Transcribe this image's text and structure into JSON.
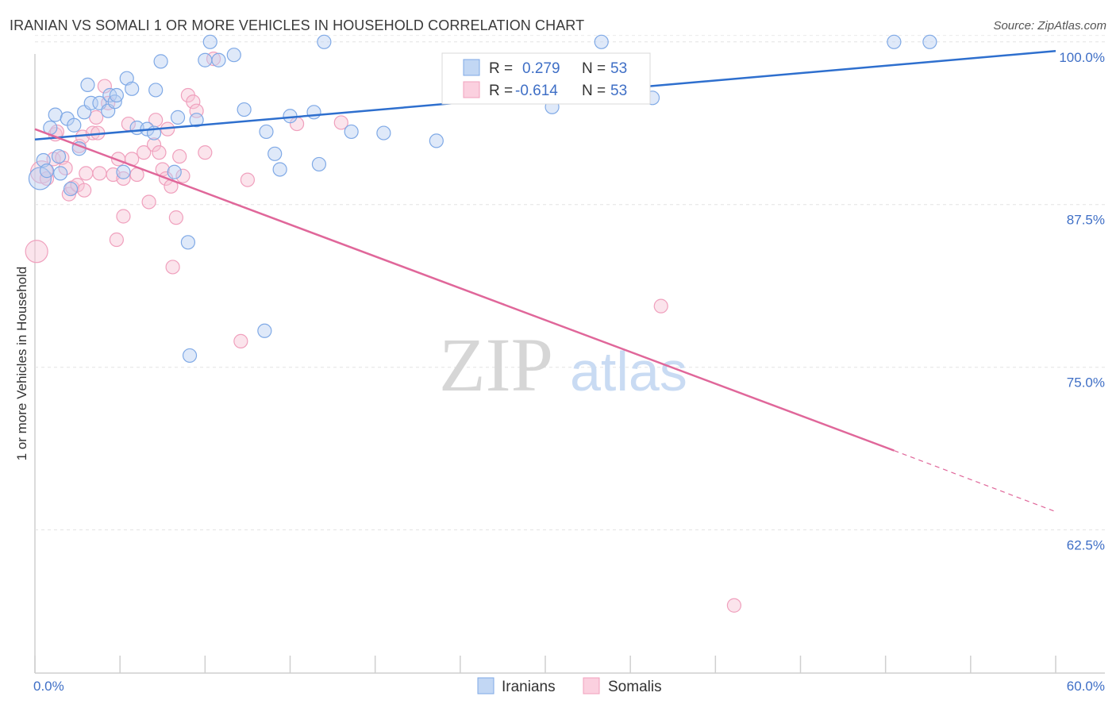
{
  "chart_data": {
    "type": "scatter",
    "title": "IRANIAN VS SOMALI 1 OR MORE VEHICLES IN HOUSEHOLD CORRELATION CHART",
    "source": "Source: ZipAtlas.com",
    "xlabel": "",
    "ylabel": "1 or more Vehicles in Household",
    "xlim": [
      0,
      60
    ],
    "ylim": [
      51.5,
      102
    ],
    "x_tick_labels": [
      "0.0%",
      "60.0%"
    ],
    "y_ticks": [
      62.5,
      75.0,
      87.5,
      100.0
    ],
    "y_tick_labels": [
      "62.5%",
      "75.0%",
      "87.5%",
      "100.0%"
    ],
    "watermark": "ZIPatlas",
    "colors": {
      "Iranians": "#7fa9e6",
      "Somalis": "#f0a0bd",
      "Iranians_line": "#2e6fce",
      "Somalis_line": "#e0679a"
    },
    "legend": [
      {
        "r_label": "R =",
        "r_value": "0.279",
        "n_label": "N =",
        "n_value": "53"
      },
      {
        "r_label": "R =",
        "r_value": "-0.614",
        "n_label": "N =",
        "n_value": "53"
      }
    ],
    "series": [
      {
        "name": "Iranians",
        "trend": {
          "x0": 0,
          "y0": 92.5,
          "x1": 60,
          "y1": 99.3
        },
        "points": [
          [
            0.3,
            89.5
          ],
          [
            0.5,
            90.9
          ],
          [
            0.7,
            90.1
          ],
          [
            0.9,
            93.4
          ],
          [
            1.2,
            94.4
          ],
          [
            1.4,
            91.2
          ],
          [
            1.5,
            89.9
          ],
          [
            1.9,
            94.1
          ],
          [
            2.1,
            88.7
          ],
          [
            2.3,
            93.6
          ],
          [
            2.6,
            91.8
          ],
          [
            2.9,
            94.6
          ],
          [
            3.1,
            96.7
          ],
          [
            3.3,
            95.3
          ],
          [
            3.8,
            95.3
          ],
          [
            4.3,
            94.7
          ],
          [
            4.4,
            95.9
          ],
          [
            4.7,
            95.4
          ],
          [
            4.8,
            95.9
          ],
          [
            5.2,
            90.0
          ],
          [
            5.4,
            97.2
          ],
          [
            5.7,
            96.4
          ],
          [
            6.0,
            93.4
          ],
          [
            6.6,
            93.3
          ],
          [
            7.0,
            93.0
          ],
          [
            7.1,
            96.3
          ],
          [
            7.4,
            98.5
          ],
          [
            8.2,
            90.0
          ],
          [
            8.4,
            94.2
          ],
          [
            9.0,
            84.6
          ],
          [
            9.5,
            94.0
          ],
          [
            10.0,
            98.6
          ],
          [
            10.3,
            100.0
          ],
          [
            10.8,
            98.6
          ],
          [
            11.7,
            99.0
          ],
          [
            12.3,
            94.8
          ],
          [
            13.5,
            77.8
          ],
          [
            13.6,
            93.1
          ],
          [
            14.1,
            91.4
          ],
          [
            14.4,
            90.2
          ],
          [
            15.0,
            94.3
          ],
          [
            16.4,
            94.6
          ],
          [
            16.7,
            90.6
          ],
          [
            17.0,
            100.0
          ],
          [
            18.6,
            93.1
          ],
          [
            20.5,
            93.0
          ],
          [
            23.6,
            92.4
          ],
          [
            30.4,
            95.0
          ],
          [
            33.3,
            100.0
          ],
          [
            36.3,
            95.7
          ],
          [
            50.5,
            100.0
          ],
          [
            52.6,
            100.0
          ],
          [
            9.1,
            75.9
          ]
        ]
      },
      {
        "name": "Somalis",
        "trend": {
          "x0": 0,
          "y0": 93.3,
          "x1": 50.5,
          "y1": 68.6,
          "dash_to_x": 60,
          "dash_to_y": 63.9
        },
        "points": [
          [
            0.1,
            83.9
          ],
          [
            0.4,
            90.0
          ],
          [
            0.7,
            89.5
          ],
          [
            1.1,
            91.0
          ],
          [
            1.2,
            92.9
          ],
          [
            1.6,
            91.1
          ],
          [
            1.8,
            90.3
          ],
          [
            2.0,
            88.3
          ],
          [
            2.2,
            88.8
          ],
          [
            2.5,
            89.0
          ],
          [
            2.6,
            92.0
          ],
          [
            2.8,
            92.7
          ],
          [
            3.0,
            89.9
          ],
          [
            3.4,
            93.0
          ],
          [
            3.6,
            94.2
          ],
          [
            3.8,
            89.9
          ],
          [
            4.1,
            96.6
          ],
          [
            4.3,
            95.3
          ],
          [
            4.6,
            89.8
          ],
          [
            4.9,
            91.0
          ],
          [
            5.2,
            89.5
          ],
          [
            5.5,
            93.7
          ],
          [
            5.7,
            91.0
          ],
          [
            6.0,
            89.8
          ],
          [
            6.4,
            91.5
          ],
          [
            6.7,
            87.7
          ],
          [
            7.0,
            92.1
          ],
          [
            7.1,
            94.0
          ],
          [
            7.3,
            91.5
          ],
          [
            7.5,
            90.2
          ],
          [
            7.7,
            89.5
          ],
          [
            7.8,
            93.3
          ],
          [
            8.0,
            88.9
          ],
          [
            8.3,
            86.5
          ],
          [
            8.5,
            91.2
          ],
          [
            8.7,
            89.7
          ],
          [
            9.0,
            95.9
          ],
          [
            9.3,
            95.4
          ],
          [
            9.5,
            94.7
          ],
          [
            10.0,
            91.5
          ],
          [
            10.5,
            98.7
          ],
          [
            12.1,
            77.0
          ],
          [
            12.5,
            89.4
          ],
          [
            15.4,
            93.7
          ],
          [
            18.0,
            93.8
          ],
          [
            36.8,
            79.7
          ],
          [
            41.1,
            56.7
          ],
          [
            4.8,
            84.8
          ],
          [
            5.2,
            86.6
          ],
          [
            8.1,
            82.7
          ],
          [
            3.7,
            93.0
          ],
          [
            2.9,
            88.6
          ],
          [
            1.3,
            93.1
          ]
        ]
      }
    ],
    "legend_bottom": [
      "Iranians",
      "Somalis"
    ]
  }
}
